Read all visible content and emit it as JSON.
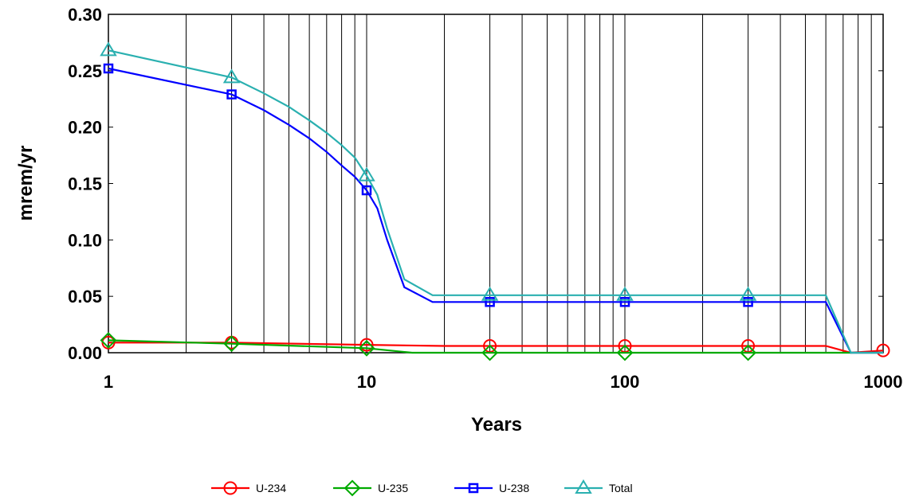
{
  "chart_data": {
    "type": "line",
    "xlabel": "Years",
    "ylabel": "mrem/yr",
    "x_scale": "log",
    "xlim": [
      1,
      1000
    ],
    "ylim": [
      0,
      0.3
    ],
    "grid": true,
    "legend_position": "bottom",
    "x_ticks": [
      "1",
      "10",
      "100",
      "1000"
    ],
    "y_ticks": [
      "0.00",
      "0.05",
      "0.10",
      "0.15",
      "0.20",
      "0.25",
      "0.30"
    ],
    "series": [
      {
        "name": "U-234",
        "color": "#ff0000",
        "marker": "circle",
        "x": [
          1,
          3,
          10,
          20,
          30,
          100,
          300,
          600,
          750,
          1000
        ],
        "y": [
          0.009,
          0.009,
          0.007,
          0.006,
          0.006,
          0.006,
          0.006,
          0.006,
          0.0,
          0.002
        ],
        "marker_x": [
          1,
          3,
          10,
          30,
          100,
          300,
          1000
        ],
        "marker_y": [
          0.009,
          0.009,
          0.007,
          0.006,
          0.006,
          0.006,
          0.002
        ]
      },
      {
        "name": "U-235",
        "color": "#00aa00",
        "marker": "diamond",
        "x": [
          1,
          3,
          10,
          15,
          30,
          100,
          300,
          1000
        ],
        "y": [
          0.011,
          0.008,
          0.004,
          0.0,
          0.0,
          0.0,
          0.0,
          0.0
        ],
        "marker_x": [
          1,
          3,
          10,
          30,
          100,
          300
        ],
        "marker_y": [
          0.011,
          0.008,
          0.004,
          0.0,
          0.0,
          0.0
        ]
      },
      {
        "name": "U-238",
        "color": "#0000ff",
        "marker": "square",
        "x": [
          1,
          3,
          4,
          5,
          6,
          7,
          8,
          9,
          10,
          11,
          12,
          14,
          18,
          30,
          100,
          300,
          600,
          750,
          1000
        ],
        "y": [
          0.252,
          0.229,
          0.215,
          0.202,
          0.19,
          0.178,
          0.166,
          0.156,
          0.144,
          0.128,
          0.1,
          0.058,
          0.045,
          0.045,
          0.045,
          0.045,
          0.045,
          0.0,
          0.0
        ],
        "marker_x": [
          1,
          3,
          10,
          30,
          100,
          300
        ],
        "marker_y": [
          0.252,
          0.229,
          0.144,
          0.045,
          0.045,
          0.045
        ]
      },
      {
        "name": "Total",
        "color": "#2ab0b0",
        "marker": "triangle",
        "x": [
          1,
          3,
          4,
          5,
          6,
          7,
          8,
          9,
          10,
          11,
          12,
          14,
          18,
          30,
          100,
          300,
          600,
          750,
          1000
        ],
        "y": [
          0.268,
          0.244,
          0.23,
          0.218,
          0.206,
          0.195,
          0.184,
          0.173,
          0.157,
          0.14,
          0.11,
          0.065,
          0.051,
          0.051,
          0.051,
          0.051,
          0.051,
          0.0,
          0.0
        ],
        "marker_x": [
          1,
          3,
          10,
          30,
          100,
          300
        ],
        "marker_y": [
          0.268,
          0.244,
          0.157,
          0.051,
          0.051,
          0.051
        ]
      }
    ]
  }
}
